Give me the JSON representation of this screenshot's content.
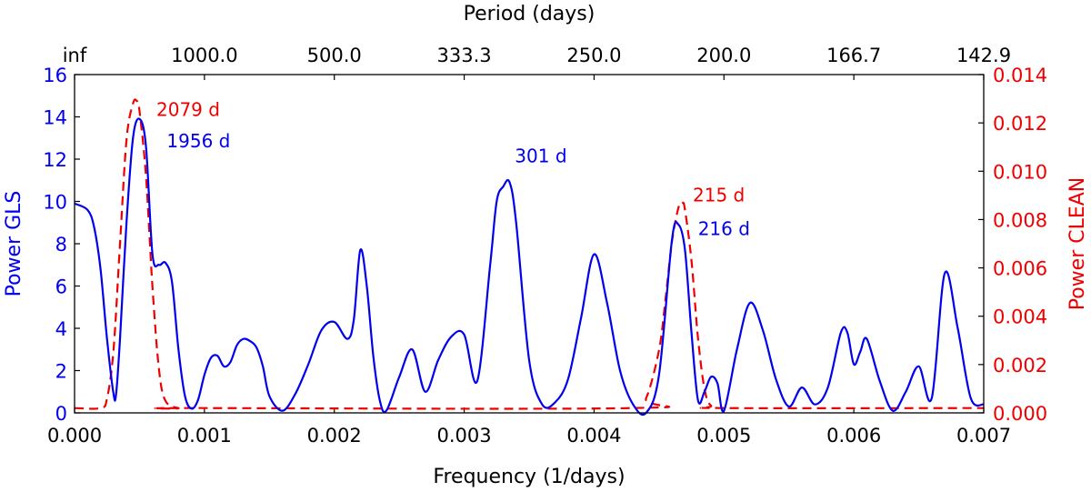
{
  "chart_data": {
    "type": "line",
    "xlabel": "Frequency (1/days)",
    "top_xlabel": "Period (days)",
    "ylabel_left": "Power GLS",
    "ylabel_right": "Power CLEAN",
    "xlim": [
      0,
      0.007
    ],
    "ylim_left": [
      0,
      16
    ],
    "ylim_right": [
      0,
      0.014
    ],
    "x_ticks": [
      0,
      0.001,
      0.002,
      0.003,
      0.004,
      0.005,
      0.006,
      0.007
    ],
    "x_tick_labels": [
      "0.000",
      "0.001",
      "0.002",
      "0.003",
      "0.004",
      "0.005",
      "0.006",
      "0.007"
    ],
    "y_left_ticks": [
      0,
      2,
      4,
      6,
      8,
      10,
      12,
      14,
      16
    ],
    "y_left_tick_labels": [
      "0",
      "2",
      "4",
      "6",
      "8",
      "10",
      "12",
      "14",
      "16"
    ],
    "y_right_ticks": [
      0,
      0.002,
      0.004,
      0.006,
      0.008,
      0.01,
      0.012,
      0.014
    ],
    "y_right_tick_labels": [
      "0.000",
      "0.002",
      "0.004",
      "0.006",
      "0.008",
      "0.010",
      "0.012",
      "0.014"
    ],
    "top_ticks_freq": [
      0,
      0.001,
      0.002,
      0.003,
      0.004,
      0.005,
      0.006,
      0.007
    ],
    "top_tick_labels": [
      "inf",
      "1000.0",
      "500.0",
      "333.3",
      "250.0",
      "200.0",
      "166.7",
      "142.9"
    ],
    "colors": {
      "gls": "#0000ee",
      "clean": "#ee0000",
      "axis": "#000000"
    },
    "series": [
      {
        "name": "GLS",
        "axis": "left",
        "style": "solid",
        "color": "#0000ee",
        "x": [
          0.0,
          0.0001,
          0.00015,
          0.0002,
          0.00025,
          0.0003,
          0.00032,
          0.00035,
          0.0004,
          0.00045,
          0.0005,
          0.00055,
          0.0006,
          0.00065,
          0.0007,
          0.00075,
          0.0008,
          0.00085,
          0.0009,
          0.00095,
          0.001,
          0.00105,
          0.0011,
          0.00115,
          0.0012,
          0.00125,
          0.0013,
          0.00135,
          0.0014,
          0.00145,
          0.0015,
          0.0016,
          0.0017,
          0.0018,
          0.0019,
          0.002,
          0.0021,
          0.00215,
          0.0022,
          0.00225,
          0.0023,
          0.00235,
          0.0024,
          0.0025,
          0.0026,
          0.0027,
          0.0028,
          0.0029,
          0.003,
          0.0031,
          0.0032,
          0.00325,
          0.0033,
          0.00335,
          0.0034,
          0.0035,
          0.0036,
          0.0037,
          0.0038,
          0.0039,
          0.004,
          0.0041,
          0.0042,
          0.0043,
          0.0044,
          0.0045,
          0.0046,
          0.00465,
          0.0047,
          0.00475,
          0.0048,
          0.00485,
          0.0049,
          0.00495,
          0.005,
          0.0051,
          0.0052,
          0.0053,
          0.0054,
          0.0055,
          0.0056,
          0.0057,
          0.0058,
          0.0059,
          0.00595,
          0.006,
          0.00605,
          0.0061,
          0.0062,
          0.0063,
          0.0064,
          0.0065,
          0.0066,
          0.0067,
          0.0068,
          0.0069,
          0.007
        ],
        "y": [
          9.9,
          9.6,
          8.8,
          6.8,
          3.5,
          0.9,
          0.9,
          3.5,
          9.0,
          13.0,
          13.9,
          12.6,
          7.5,
          7.0,
          7.1,
          6.2,
          3.0,
          0.8,
          0.2,
          0.6,
          1.8,
          2.6,
          2.7,
          2.2,
          2.4,
          3.2,
          3.5,
          3.4,
          3.1,
          2.2,
          0.8,
          0.1,
          0.9,
          2.3,
          3.9,
          4.3,
          3.5,
          4.4,
          7.7,
          6.0,
          2.7,
          0.6,
          0.1,
          1.7,
          3.0,
          1.0,
          2.5,
          3.6,
          3.7,
          1.5,
          7.0,
          10.0,
          10.7,
          10.9,
          9.0,
          2.5,
          0.4,
          0.5,
          1.6,
          4.5,
          7.5,
          5.2,
          2.0,
          0.4,
          0.0,
          1.8,
          8.2,
          8.9,
          7.7,
          3.8,
          0.6,
          1.0,
          1.7,
          1.4,
          0.1,
          3.0,
          5.2,
          3.9,
          1.6,
          0.3,
          1.2,
          0.4,
          1.2,
          3.8,
          3.8,
          2.3,
          2.9,
          3.5,
          1.5,
          0.1,
          1.0,
          2.2,
          0.7,
          6.6,
          4.0,
          0.7,
          0.4
        ]
      },
      {
        "name": "CLEAN",
        "axis": "right",
        "style": "dashed",
        "color": "#ee0000",
        "x": [
          0.0,
          0.0002,
          0.00025,
          0.0003,
          0.00035,
          0.0004,
          0.00045,
          0.00048,
          0.0005,
          0.00055,
          0.0006,
          0.00065,
          0.0007,
          0.0008,
          0.0009,
          0.0043,
          0.0044,
          0.0045,
          0.00455,
          0.0046,
          0.00465,
          0.00468,
          0.0047,
          0.00475,
          0.0048,
          0.00485,
          0.0049,
          0.005,
          0.007
        ],
        "y": [
          0.0002,
          0.0002,
          0.0006,
          0.0026,
          0.007,
          0.0113,
          0.0128,
          0.0129,
          0.0125,
          0.0098,
          0.0052,
          0.0018,
          0.0005,
          0.0002,
          0.0002,
          0.0002,
          0.0006,
          0.0026,
          0.0047,
          0.0071,
          0.0085,
          0.0087,
          0.0084,
          0.0063,
          0.0031,
          0.001,
          0.0003,
          0.0002,
          0.0002
        ]
      }
    ],
    "annotations": [
      {
        "text": "2079 d",
        "x": 0.00063,
        "y": 14.05,
        "axis": "left",
        "color": "#ee0000"
      },
      {
        "text": "1956 d",
        "x": 0.00071,
        "y": 12.55,
        "axis": "left",
        "color": "#0000ee"
      },
      {
        "text": "301 d",
        "x": 0.00339,
        "y": 11.85,
        "axis": "left",
        "color": "#0000ee"
      },
      {
        "text": "215 d",
        "x": 0.00476,
        "y": 10.0,
        "axis": "left",
        "color": "#ee0000"
      },
      {
        "text": "216 d",
        "x": 0.0048,
        "y": 8.4,
        "axis": "left",
        "color": "#0000ee"
      }
    ]
  }
}
